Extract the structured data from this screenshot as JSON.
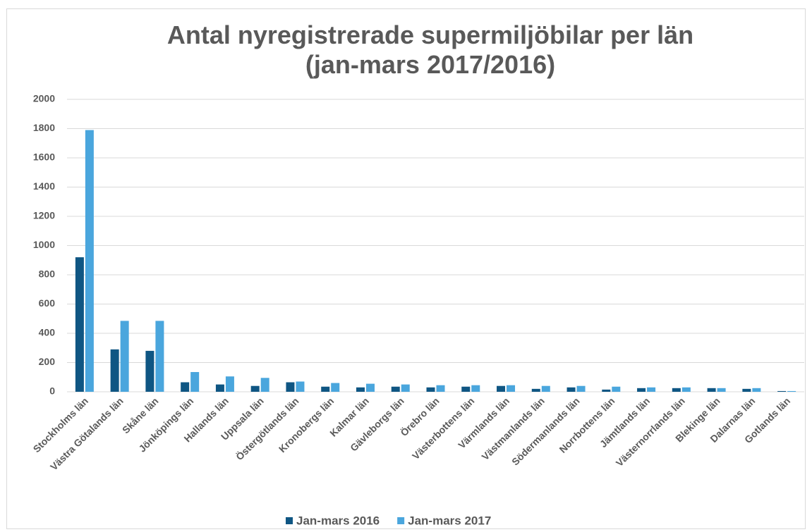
{
  "chart_data": {
    "type": "bar",
    "title": "Antal nyregistrerade supermiljöbilar per län",
    "subtitle": "(jan-mars 2017/2016)",
    "categories": [
      "Stockholms län",
      "Västra Götalands län",
      "Skåne län",
      "Jönköpings län",
      "Hallands län",
      "Uppsala län",
      "Östergötlands län",
      "Kronobergs län",
      "Kalmar län",
      "Gävleborgs län",
      "Örebro län",
      "Västerbottens län",
      "Värmlands län",
      "Västmanlands län",
      "Södermanlands län",
      "Norrbottens län",
      "Jämtlands län",
      "Västernorrlands län",
      "Blekinge län",
      "Dalarnas län",
      "Gotlands län"
    ],
    "series": [
      {
        "name": "Jan-mars 2016",
        "color": "#0f5683",
        "values": [
          920,
          290,
          280,
          65,
          50,
          40,
          65,
          35,
          30,
          35,
          30,
          35,
          40,
          20,
          30,
          15,
          25,
          25,
          25,
          20,
          5
        ]
      },
      {
        "name": "Jan-mars 2017",
        "color": "#4aa6dd",
        "values": [
          1790,
          485,
          485,
          135,
          105,
          95,
          70,
          60,
          55,
          50,
          45,
          45,
          45,
          40,
          40,
          35,
          30,
          30,
          25,
          25,
          5
        ]
      }
    ],
    "ylim": [
      0,
      2000
    ],
    "yticks": [
      0,
      200,
      400,
      600,
      800,
      1000,
      1200,
      1400,
      1600,
      1800,
      2000
    ],
    "grid": true,
    "legend": "bottom"
  }
}
